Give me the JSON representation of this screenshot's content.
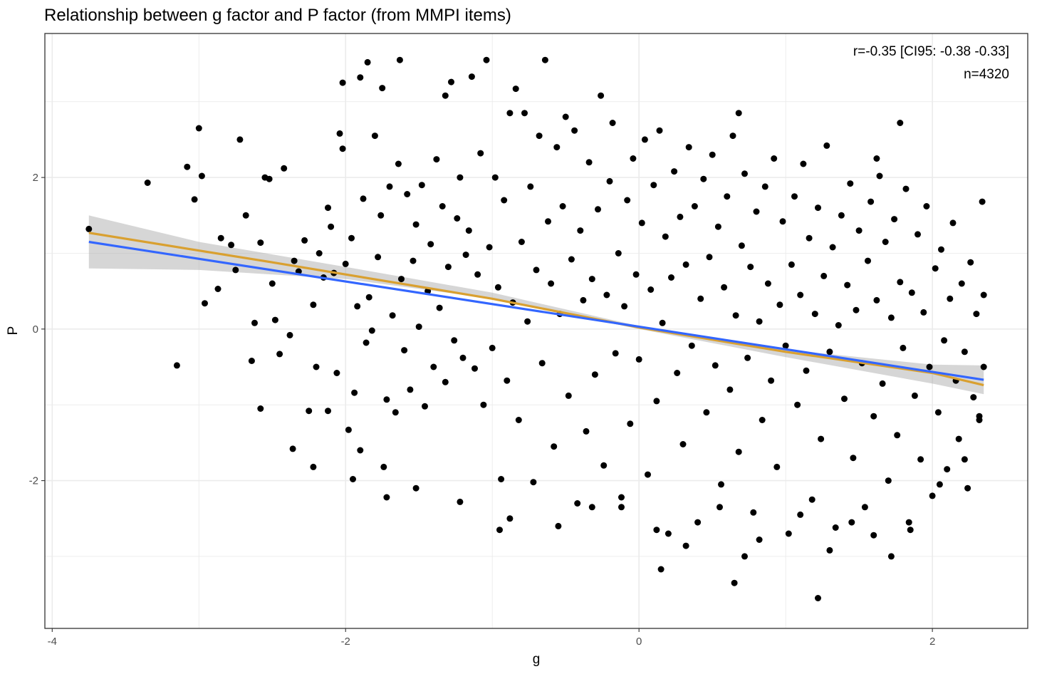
{
  "chart_data": {
    "type": "scatter",
    "title": "Relationship between g factor and P factor (from MMPI items)",
    "xlabel": "g",
    "ylabel": "P",
    "xlim": [
      -4.05,
      2.65
    ],
    "ylim": [
      -3.95,
      3.9
    ],
    "x_ticks": [
      -4,
      -2,
      0,
      2
    ],
    "y_ticks": [
      -2,
      0,
      2
    ],
    "x_tick_labels": [
      "-4",
      "-2",
      "0",
      "2"
    ],
    "y_tick_labels": [
      "-2",
      "0",
      "2"
    ],
    "grid": true,
    "annotations": [
      "r=-0.35 [CI95: -0.38 -0.33]",
      "n=4320"
    ],
    "annotation_position": "top-right",
    "n_points": 4320,
    "colors": {
      "points": "#000000",
      "linear_fit": "#3366ff",
      "loess_fit": "#d9a030",
      "ci_band": "#999999",
      "grid": "#ebebeb"
    },
    "fit_lines": [
      {
        "method": "linear",
        "color": "#3366ff",
        "x": [
          -3.75,
          2.35
        ],
        "y": [
          1.15,
          -0.67
        ]
      },
      {
        "method": "smooth",
        "color": "#d9a030",
        "x": [
          -3.75,
          -2.5,
          -1.0,
          0.0,
          1.0,
          2.0,
          2.35
        ],
        "y": [
          1.27,
          0.88,
          0.4,
          0.02,
          -0.3,
          -0.58,
          -0.74
        ]
      }
    ],
    "ci_band": {
      "x": [
        -3.75,
        -3.0,
        -2.0,
        -1.0,
        0.0,
        1.0,
        2.0,
        2.35
      ],
      "lower": [
        0.8,
        0.78,
        0.66,
        0.4,
        0.0,
        -0.37,
        -0.72,
        -0.86
      ],
      "upper": [
        1.5,
        1.15,
        0.82,
        0.48,
        0.04,
        -0.27,
        -0.47,
        -0.48
      ]
    },
    "points": [
      [
        -3.75,
        1.32
      ],
      [
        -3.35,
        1.93
      ],
      [
        -3.15,
        -0.48
      ],
      [
        -3.08,
        2.14
      ],
      [
        -3.03,
        1.71
      ],
      [
        -3.0,
        2.65
      ],
      [
        -2.98,
        2.02
      ],
      [
        -2.96,
        0.34
      ],
      [
        -2.87,
        0.53
      ],
      [
        -2.85,
        1.2
      ],
      [
        -2.78,
        1.11
      ],
      [
        -2.75,
        0.78
      ],
      [
        -2.72,
        2.5
      ],
      [
        -2.68,
        1.5
      ],
      [
        -2.64,
        -0.42
      ],
      [
        -2.62,
        0.08
      ],
      [
        -2.58,
        1.14
      ],
      [
        -2.55,
        2.0
      ],
      [
        -2.52,
        1.98
      ],
      [
        -2.5,
        0.6
      ],
      [
        -2.48,
        0.12
      ],
      [
        -2.45,
        -0.33
      ],
      [
        -2.42,
        2.12
      ],
      [
        -2.38,
        -0.08
      ],
      [
        -2.35,
        0.9
      ],
      [
        -2.32,
        0.76
      ],
      [
        -2.28,
        1.17
      ],
      [
        -2.25,
        -1.08
      ],
      [
        -2.22,
        0.32
      ],
      [
        -2.2,
        -0.5
      ],
      [
        -2.18,
        1.0
      ],
      [
        -2.15,
        0.68
      ],
      [
        -2.12,
        1.6
      ],
      [
        -2.1,
        1.35
      ],
      [
        -2.08,
        0.74
      ],
      [
        -2.06,
        -0.58
      ],
      [
        -2.04,
        2.58
      ],
      [
        -2.02,
        2.38
      ],
      [
        -2.0,
        0.86
      ],
      [
        -1.98,
        -1.33
      ],
      [
        -1.96,
        1.2
      ],
      [
        -1.94,
        -0.84
      ],
      [
        -1.92,
        0.3
      ],
      [
        -1.9,
        -1.6
      ],
      [
        -1.88,
        1.72
      ],
      [
        -1.86,
        -0.18
      ],
      [
        -1.84,
        0.42
      ],
      [
        -1.82,
        -0.02
      ],
      [
        -1.8,
        2.55
      ],
      [
        -1.78,
        0.95
      ],
      [
        -1.76,
        1.5
      ],
      [
        -1.74,
        -1.82
      ],
      [
        -1.72,
        -0.93
      ],
      [
        -1.7,
        1.88
      ],
      [
        -1.68,
        0.18
      ],
      [
        -1.66,
        -1.1
      ],
      [
        -1.64,
        2.18
      ],
      [
        -1.62,
        0.66
      ],
      [
        -1.6,
        -0.28
      ],
      [
        -1.58,
        1.78
      ],
      [
        -1.56,
        -0.8
      ],
      [
        -1.54,
        0.9
      ],
      [
        -1.52,
        1.38
      ],
      [
        -1.5,
        0.03
      ],
      [
        -1.48,
        1.9
      ],
      [
        -1.46,
        -1.02
      ],
      [
        -1.44,
        0.5
      ],
      [
        -1.42,
        1.12
      ],
      [
        -1.4,
        -0.5
      ],
      [
        -1.38,
        2.24
      ],
      [
        -1.36,
        0.28
      ],
      [
        -1.34,
        1.62
      ],
      [
        -1.32,
        -0.7
      ],
      [
        -1.3,
        0.82
      ],
      [
        -1.28,
        3.26
      ],
      [
        -1.26,
        -0.15
      ],
      [
        -1.24,
        1.46
      ],
      [
        -1.22,
        2.0
      ],
      [
        -1.2,
        -0.38
      ],
      [
        -1.18,
        0.98
      ],
      [
        -1.16,
        1.3
      ],
      [
        -1.14,
        3.33
      ],
      [
        -1.12,
        -0.52
      ],
      [
        -1.1,
        0.72
      ],
      [
        -1.08,
        2.32
      ],
      [
        -1.06,
        -1.0
      ],
      [
        -1.04,
        3.55
      ],
      [
        -1.02,
        1.08
      ],
      [
        -1.0,
        -0.25
      ],
      [
        -0.98,
        2.0
      ],
      [
        -0.96,
        0.55
      ],
      [
        -0.94,
        -1.98
      ],
      [
        -0.92,
        1.7
      ],
      [
        -0.9,
        -0.68
      ],
      [
        -0.88,
        2.85
      ],
      [
        -0.86,
        0.35
      ],
      [
        -0.84,
        3.17
      ],
      [
        -0.82,
        -1.2
      ],
      [
        -0.8,
        1.15
      ],
      [
        -0.78,
        2.85
      ],
      [
        -0.76,
        0.1
      ],
      [
        -0.74,
        1.88
      ],
      [
        -0.72,
        -2.02
      ],
      [
        -0.7,
        0.78
      ],
      [
        -0.68,
        2.55
      ],
      [
        -0.66,
        -0.45
      ],
      [
        -0.64,
        3.55
      ],
      [
        -0.62,
        1.42
      ],
      [
        -0.6,
        0.6
      ],
      [
        -0.58,
        -1.55
      ],
      [
        -0.56,
        2.4
      ],
      [
        -0.54,
        0.2
      ],
      [
        -0.52,
        1.62
      ],
      [
        -0.5,
        2.8
      ],
      [
        -0.48,
        -0.88
      ],
      [
        -0.46,
        0.92
      ],
      [
        -0.44,
        2.62
      ],
      [
        -0.42,
        -2.3
      ],
      [
        -0.4,
        1.3
      ],
      [
        -0.38,
        0.38
      ],
      [
        -0.36,
        -1.35
      ],
      [
        -0.34,
        2.2
      ],
      [
        -0.32,
        0.66
      ],
      [
        -0.3,
        -0.6
      ],
      [
        -0.28,
        1.58
      ],
      [
        -0.26,
        3.08
      ],
      [
        -0.24,
        -1.8
      ],
      [
        -0.22,
        0.45
      ],
      [
        -0.2,
        1.95
      ],
      [
        -0.18,
        2.72
      ],
      [
        -0.16,
        -0.32
      ],
      [
        -0.14,
        1.0
      ],
      [
        -0.12,
        -2.22
      ],
      [
        -0.1,
        0.3
      ],
      [
        -0.08,
        1.7
      ],
      [
        -0.06,
        -1.25
      ],
      [
        -0.04,
        2.25
      ],
      [
        -0.02,
        0.72
      ],
      [
        0.0,
        -0.4
      ],
      [
        0.02,
        1.4
      ],
      [
        0.04,
        2.5
      ],
      [
        0.06,
        -1.92
      ],
      [
        0.08,
        0.52
      ],
      [
        0.1,
        1.9
      ],
      [
        0.12,
        -0.95
      ],
      [
        0.14,
        2.62
      ],
      [
        0.16,
        0.08
      ],
      [
        0.18,
        1.22
      ],
      [
        0.2,
        -2.7
      ],
      [
        0.22,
        0.68
      ],
      [
        0.24,
        2.08
      ],
      [
        0.26,
        -0.58
      ],
      [
        0.28,
        1.48
      ],
      [
        0.3,
        -1.52
      ],
      [
        0.32,
        0.85
      ],
      [
        0.34,
        2.4
      ],
      [
        0.36,
        -0.22
      ],
      [
        0.38,
        1.62
      ],
      [
        0.4,
        -2.55
      ],
      [
        0.42,
        0.4
      ],
      [
        0.44,
        1.98
      ],
      [
        0.46,
        -1.1
      ],
      [
        0.48,
        0.95
      ],
      [
        0.5,
        2.3
      ],
      [
        0.52,
        -0.48
      ],
      [
        0.54,
        1.35
      ],
      [
        0.56,
        -2.05
      ],
      [
        0.58,
        0.55
      ],
      [
        0.6,
        1.75
      ],
      [
        0.62,
        -0.8
      ],
      [
        0.64,
        2.55
      ],
      [
        0.66,
        0.18
      ],
      [
        0.68,
        -1.62
      ],
      [
        0.7,
        1.1
      ],
      [
        0.72,
        2.05
      ],
      [
        0.74,
        -0.38
      ],
      [
        0.76,
        0.82
      ],
      [
        0.78,
        -2.42
      ],
      [
        0.8,
        1.55
      ],
      [
        0.82,
        0.1
      ],
      [
        0.84,
        -1.2
      ],
      [
        0.86,
        1.88
      ],
      [
        0.88,
        0.6
      ],
      [
        0.9,
        -0.68
      ],
      [
        0.92,
        2.25
      ],
      [
        0.94,
        -1.82
      ],
      [
        0.96,
        0.32
      ],
      [
        0.98,
        1.42
      ],
      [
        1.0,
        -0.22
      ],
      [
        1.02,
        -2.7
      ],
      [
        1.04,
        0.85
      ],
      [
        1.06,
        1.75
      ],
      [
        1.08,
        -1.0
      ],
      [
        1.1,
        0.45
      ],
      [
        1.12,
        2.18
      ],
      [
        1.14,
        -0.55
      ],
      [
        1.16,
        1.2
      ],
      [
        1.18,
        -2.25
      ],
      [
        1.2,
        0.2
      ],
      [
        1.22,
        1.6
      ],
      [
        1.24,
        -1.45
      ],
      [
        1.26,
        0.7
      ],
      [
        1.28,
        2.42
      ],
      [
        1.3,
        -0.3
      ],
      [
        1.32,
        1.08
      ],
      [
        1.34,
        -2.62
      ],
      [
        1.36,
        0.05
      ],
      [
        1.38,
        1.5
      ],
      [
        1.4,
        -0.92
      ],
      [
        1.42,
        0.58
      ],
      [
        1.44,
        1.92
      ],
      [
        1.46,
        -1.7
      ],
      [
        1.48,
        0.25
      ],
      [
        1.5,
        1.3
      ],
      [
        1.52,
        -0.45
      ],
      [
        1.54,
        -2.35
      ],
      [
        1.56,
        0.9
      ],
      [
        1.58,
        1.68
      ],
      [
        1.6,
        -1.15
      ],
      [
        1.62,
        0.38
      ],
      [
        1.64,
        2.02
      ],
      [
        1.66,
        -0.72
      ],
      [
        1.68,
        1.15
      ],
      [
        1.7,
        -2.0
      ],
      [
        1.72,
        0.15
      ],
      [
        1.74,
        1.45
      ],
      [
        1.76,
        -1.4
      ],
      [
        1.78,
        0.62
      ],
      [
        1.8,
        -0.25
      ],
      [
        1.82,
        1.85
      ],
      [
        1.84,
        -2.55
      ],
      [
        1.86,
        0.48
      ],
      [
        1.88,
        -0.88
      ],
      [
        1.9,
        1.25
      ],
      [
        1.92,
        -1.72
      ],
      [
        1.94,
        0.22
      ],
      [
        1.96,
        1.62
      ],
      [
        1.98,
        -0.5
      ],
      [
        2.0,
        -2.2
      ],
      [
        2.02,
        0.8
      ],
      [
        2.04,
        -1.1
      ],
      [
        2.06,
        1.05
      ],
      [
        2.08,
        -0.15
      ],
      [
        2.1,
        -1.85
      ],
      [
        2.12,
        0.4
      ],
      [
        2.14,
        1.4
      ],
      [
        2.16,
        -0.68
      ],
      [
        2.18,
        -1.45
      ],
      [
        2.2,
        0.6
      ],
      [
        2.22,
        -0.3
      ],
      [
        2.24,
        -2.1
      ],
      [
        2.26,
        0.88
      ],
      [
        2.28,
        -0.9
      ],
      [
        2.3,
        0.2
      ],
      [
        2.32,
        -1.2
      ],
      [
        2.34,
        1.68
      ],
      [
        2.35,
        -0.5
      ],
      [
        -1.63,
        3.55
      ],
      [
        -1.85,
        3.52
      ],
      [
        -1.9,
        3.32
      ],
      [
        -2.02,
        3.25
      ],
      [
        -1.75,
        3.18
      ],
      [
        -1.32,
        3.08
      ],
      [
        0.15,
        -3.17
      ],
      [
        0.65,
        -3.35
      ],
      [
        1.22,
        -3.55
      ],
      [
        0.72,
        -3.0
      ],
      [
        1.72,
        -3.0
      ],
      [
        1.3,
        -2.92
      ],
      [
        0.32,
        -2.86
      ],
      [
        1.78,
        2.72
      ],
      [
        0.68,
        2.85
      ],
      [
        -2.36,
        -1.58
      ],
      [
        -2.22,
        -1.82
      ],
      [
        -2.58,
        -1.05
      ],
      [
        -2.12,
        -1.08
      ],
      [
        -1.95,
        -1.98
      ],
      [
        -1.72,
        -2.22
      ],
      [
        -1.52,
        -2.1
      ],
      [
        -1.22,
        -2.28
      ],
      [
        -0.95,
        -2.65
      ],
      [
        -0.88,
        -2.5
      ],
      [
        -0.55,
        -2.6
      ],
      [
        -0.32,
        -2.35
      ],
      [
        -0.12,
        -2.35
      ],
      [
        0.12,
        -2.65
      ],
      [
        0.55,
        -2.35
      ],
      [
        0.82,
        -2.78
      ],
      [
        1.1,
        -2.45
      ],
      [
        1.45,
        -2.55
      ],
      [
        1.6,
        -2.72
      ],
      [
        1.85,
        -2.65
      ],
      [
        2.05,
        -2.05
      ],
      [
        2.22,
        -1.72
      ],
      [
        1.62,
        2.25
      ],
      [
        2.32,
        -1.15
      ],
      [
        2.35,
        0.45
      ]
    ]
  }
}
